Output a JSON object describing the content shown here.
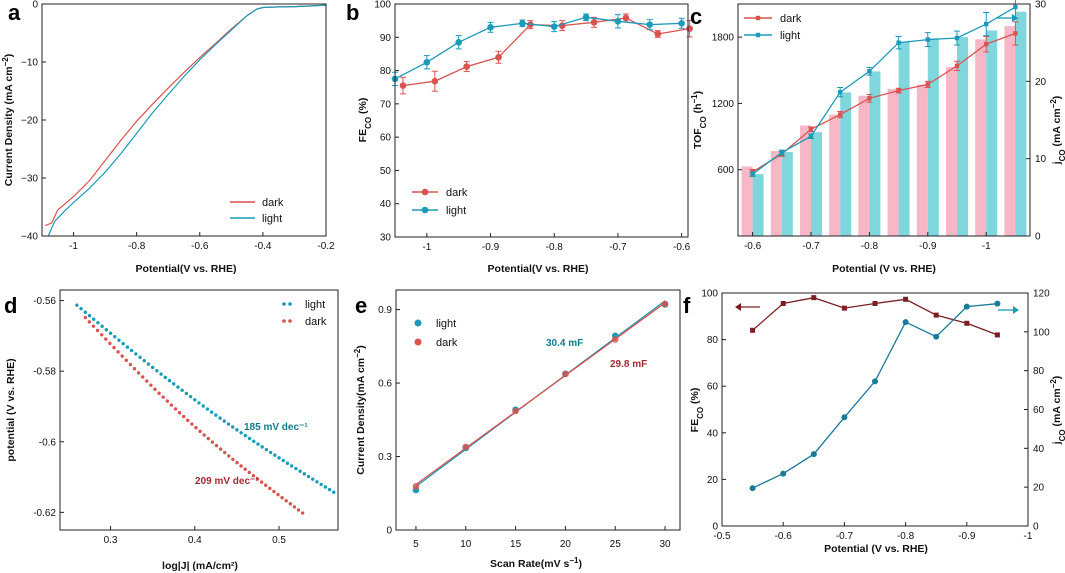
{
  "colors": {
    "dark": "#d9534f",
    "light": "#1a9bb8",
    "pink_bar": "#f7b7c6",
    "cyan_bar": "#7fd6dc",
    "maroon": "#7b1f24",
    "teal_ann": "#137a8c",
    "red_ann": "#a52a35"
  },
  "chart_data": [
    {
      "id": "a",
      "type": "line",
      "panel_label": "a",
      "xlabel": "Potential(V vs. RHE)",
      "ylabel": "Current Density (mA cm⁻²)",
      "xlim": [
        -1.1,
        -0.2
      ],
      "ylim": [
        -40,
        0
      ],
      "xticks": [
        "-1",
        "-0.8",
        "-0.6",
        "-0.4",
        "-0.2"
      ],
      "xtick_values": [
        -1,
        -0.8,
        -0.6,
        -0.4,
        -0.2
      ],
      "yticks": [
        "0",
        "−10",
        "−20",
        "−30",
        "−40"
      ],
      "ytick_values": [
        0,
        -10,
        -20,
        -30,
        -40
      ],
      "legend": [
        "dark",
        "light"
      ],
      "series": [
        {
          "name": "dark",
          "color": "#d9534f",
          "x": [
            -1.09,
            -1.07,
            -1.05,
            -1.0,
            -0.95,
            -0.9,
            -0.85,
            -0.8,
            -0.75,
            -0.7,
            -0.65,
            -0.6,
            -0.55,
            -0.5,
            -0.45,
            -0.42,
            -0.4,
            -0.35,
            -0.3,
            -0.25,
            -0.2
          ],
          "y": [
            -38.2,
            -37.8,
            -35.5,
            -33.2,
            -30.5,
            -27.0,
            -23.5,
            -20.2,
            -17.3,
            -14.5,
            -11.8,
            -9.2,
            -6.8,
            -4.3,
            -2.0,
            -0.9,
            -0.6,
            -0.5,
            -0.45,
            -0.35,
            -0.2
          ]
        },
        {
          "name": "light",
          "color": "#1a9bb8",
          "x": [
            -1.08,
            -1.06,
            -1.03,
            -1.0,
            -0.95,
            -0.9,
            -0.85,
            -0.8,
            -0.75,
            -0.7,
            -0.65,
            -0.6,
            -0.55,
            -0.5,
            -0.45,
            -0.42,
            -0.4,
            -0.35,
            -0.3,
            -0.25,
            -0.2
          ],
          "y": [
            -40.0,
            -37.5,
            -35.8,
            -34.2,
            -31.8,
            -29.0,
            -25.8,
            -22.3,
            -18.8,
            -15.6,
            -12.5,
            -9.6,
            -7.0,
            -4.5,
            -2.0,
            -0.9,
            -0.6,
            -0.5,
            -0.45,
            -0.35,
            -0.2
          ]
        }
      ]
    },
    {
      "id": "b",
      "type": "line",
      "panel_label": "b",
      "xlabel": "Potential(V vs. RHE)",
      "ylabel": "FE_CO (%)",
      "xlim": [
        -1.05,
        -0.59
      ],
      "ylim": [
        30,
        100
      ],
      "xticks": [
        "-1",
        "-0.9",
        "-0.8",
        "-0.7",
        "-0.6"
      ],
      "xtick_values": [
        -1,
        -0.9,
        -0.8,
        -0.7,
        -0.6
      ],
      "yticks": [
        "30",
        "40",
        "50",
        "60",
        "70",
        "80",
        "90",
        "100"
      ],
      "ytick_values": [
        30,
        40,
        50,
        60,
        70,
        80,
        90,
        100
      ],
      "legend": [
        "dark",
        "light"
      ],
      "series": [
        {
          "name": "dark",
          "color": "#d9534f",
          "x": [
            -1.05,
            -1.0,
            -0.95,
            -0.9,
            -0.85,
            -0.8,
            -0.75,
            -0.7,
            -0.65,
            -0.6
          ],
          "y": [
            75.5,
            76.8,
            81.2,
            84.0,
            93.8,
            93.5,
            94.5,
            95.8,
            91.0,
            92.6
          ],
          "err": [
            2.5,
            3.0,
            1.5,
            1.8,
            1.2,
            1.5,
            1.5,
            1.2,
            1.0,
            2.5
          ]
        },
        {
          "name": "light",
          "color": "#1a9bb8",
          "x": [
            -1.05,
            -1.0,
            -0.95,
            -0.9,
            -0.85,
            -0.8,
            -0.75,
            -0.7,
            -0.65,
            -0.6
          ],
          "y": [
            77.5,
            82.5,
            88.5,
            93.0,
            94.2,
            93.2,
            96.0,
            94.8,
            93.8,
            94.2
          ],
          "err": [
            2.0,
            2.0,
            2.0,
            1.5,
            1.0,
            1.5,
            1.0,
            2.0,
            1.5,
            1.5
          ]
        }
      ]
    },
    {
      "id": "c",
      "type": "bar+line",
      "panel_label": "c",
      "xlabel": "Potential (V vs. RHE)",
      "ylabel": "TOF_CO (h⁻¹)",
      "ylabel_right": "j_CO (mA cm⁻²)",
      "categories": [
        "-0.6",
        "-0.65",
        "-0.7",
        "-0.75",
        "-0.8",
        "-0.85",
        "-0.9",
        "-0.95",
        "-1",
        "-1.05"
      ],
      "category_values": [
        -0.6,
        -0.65,
        -0.7,
        -0.75,
        -0.8,
        -0.85,
        -0.9,
        -0.95,
        -1.0,
        -1.05
      ],
      "xticks": [
        "-0.6",
        "-0.7",
        "-0.8",
        "-0.9",
        "-1"
      ],
      "yticks": [
        "600",
        "1200",
        "1800"
      ],
      "ytick_values": [
        600,
        1200,
        1800
      ],
      "ylim": [
        0,
        2100
      ],
      "yticks_right": [
        "0",
        "10",
        "20",
        "30"
      ],
      "ytick_values_right": [
        0,
        10,
        20,
        30
      ],
      "ylim_right": [
        0,
        30
      ],
      "legend": [
        "dark",
        "light"
      ],
      "bars_dark_tof": [
        630,
        770,
        1000,
        1100,
        1270,
        1330,
        1370,
        1530,
        1780,
        1900
      ],
      "bars_light_tof": [
        560,
        760,
        940,
        1300,
        1490,
        1760,
        1790,
        1800,
        1860,
        2030
      ],
      "series": [
        {
          "name": "dark",
          "color": "#d9534f",
          "x": [
            -0.6,
            -0.65,
            -0.7,
            -0.75,
            -0.8,
            -0.85,
            -0.9,
            -0.95,
            -1.0,
            -1.05
          ],
          "y": [
            8.3,
            10.6,
            13.8,
            15.7,
            17.8,
            18.8,
            19.6,
            22.0,
            24.8,
            26.2
          ],
          "err": [
            0.3,
            0.3,
            0.3,
            0.4,
            0.5,
            0.3,
            0.4,
            0.6,
            1.0,
            1.5
          ]
        },
        {
          "name": "light",
          "color": "#1a9bb8",
          "x": [
            -0.6,
            -0.65,
            -0.7,
            -0.75,
            -0.8,
            -0.85,
            -0.9,
            -0.95,
            -1.0,
            -1.05
          ],
          "y": [
            8.0,
            10.8,
            12.9,
            18.6,
            21.3,
            25.0,
            25.4,
            25.6,
            27.4,
            29.6
          ],
          "err": [
            0.3,
            0.3,
            0.3,
            0.6,
            0.5,
            0.8,
            0.9,
            0.9,
            1.5,
            1.5
          ]
        }
      ]
    },
    {
      "id": "d",
      "type": "scatter",
      "panel_label": "d",
      "xlabel": "log|J| (mA/cm²)",
      "ylabel": "potential (V vs. RHE)",
      "xlim": [
        0.24,
        0.57
      ],
      "ylim": [
        -0.625,
        -0.557
      ],
      "xticks": [
        "0.3",
        "0.4",
        "0.5"
      ],
      "xtick_values": [
        0.3,
        0.4,
        0.5
      ],
      "yticks": [
        "-0.56",
        "-0.58",
        "-0.6",
        "-0.62"
      ],
      "ytick_values": [
        -0.56,
        -0.58,
        -0.6,
        -0.62
      ],
      "legend": [
        "light",
        "dark"
      ],
      "annotations": [
        {
          "text": "185 mV dec⁻¹",
          "series": "light"
        },
        {
          "text": "209 mV dec⁻¹",
          "series": "dark"
        }
      ],
      "series": [
        {
          "name": "light",
          "color": "#1a9bb8",
          "x_start": 0.26,
          "x_end": 0.565,
          "y_start": -0.5613,
          "y_end": -0.6143,
          "count": 62
        },
        {
          "name": "dark",
          "color": "#d9534f",
          "x_start": 0.27,
          "x_end": 0.528,
          "y_start": -0.5648,
          "y_end": -0.6202,
          "count": 54
        }
      ]
    },
    {
      "id": "e",
      "type": "scatter+fit",
      "panel_label": "e",
      "xlabel": "Scan Rate(mV s⁻¹)",
      "ylabel": "Current Density(mA cm⁻²)",
      "xlim": [
        3,
        31.5
      ],
      "ylim": [
        0,
        0.98
      ],
      "xticks": [
        "5",
        "10",
        "15",
        "20",
        "25",
        "30"
      ],
      "xtick_values": [
        5,
        10,
        15,
        20,
        25,
        30
      ],
      "yticks": [
        "0",
        "0.3",
        "0.6",
        "0.9"
      ],
      "ytick_values": [
        0,
        0.3,
        0.6,
        0.9
      ],
      "legend": [
        "light",
        "dark"
      ],
      "annotations": [
        {
          "text": "30.4 mF",
          "series": "light"
        },
        {
          "text": "29.8 mF",
          "series": "dark"
        }
      ],
      "series": [
        {
          "name": "light",
          "color": "#1a9bb8",
          "x": [
            5,
            10,
            15,
            20,
            25,
            30
          ],
          "y": [
            0.163,
            0.335,
            0.491,
            0.638,
            0.793,
            0.921
          ]
        },
        {
          "name": "dark",
          "color": "#d9534f",
          "x": [
            5,
            10,
            15,
            20,
            25,
            30
          ],
          "y": [
            0.178,
            0.339,
            0.486,
            0.637,
            0.778,
            0.923
          ]
        }
      ]
    },
    {
      "id": "f",
      "type": "line",
      "panel_label": "f",
      "xlabel": "Potential (V vs. RHE)",
      "ylabel": "FE_CO (%)",
      "ylabel_right": "j_CO (mA cm⁻²)",
      "xlim": [
        -0.5,
        -1.0
      ],
      "ylim": [
        0,
        100
      ],
      "ylim_right": [
        0,
        120
      ],
      "xticks": [
        "-0.5",
        "-0.6",
        "-0.7",
        "-0.8",
        "-0.9",
        "-1"
      ],
      "xtick_values": [
        -0.5,
        -0.6,
        -0.7,
        -0.8,
        -0.9,
        -1.0
      ],
      "yticks": [
        "0",
        "20",
        "40",
        "60",
        "80",
        "100"
      ],
      "ytick_values": [
        0,
        20,
        40,
        60,
        80,
        100
      ],
      "yticks_right": [
        "0",
        "20",
        "40",
        "60",
        "80",
        "100",
        "120"
      ],
      "ytick_values_right": [
        0,
        20,
        40,
        60,
        80,
        100,
        120
      ],
      "series": [
        {
          "name": "FE_CO",
          "axis": "left",
          "color": "#7b1f24",
          "x": [
            -0.55,
            -0.6,
            -0.65,
            -0.7,
            -0.75,
            -0.8,
            -0.85,
            -0.9,
            -0.95
          ],
          "y": [
            84,
            95.5,
            98,
            93.5,
            95.5,
            97.3,
            90.5,
            87,
            82
          ]
        },
        {
          "name": "j_CO",
          "axis": "right",
          "color": "#1a7a9a",
          "x": [
            -0.55,
            -0.6,
            -0.65,
            -0.7,
            -0.75,
            -0.8,
            -0.85,
            -0.9,
            -0.95
          ],
          "y": [
            19.5,
            27,
            37,
            56,
            74.5,
            105,
            97.5,
            113,
            114.5
          ]
        }
      ]
    }
  ]
}
